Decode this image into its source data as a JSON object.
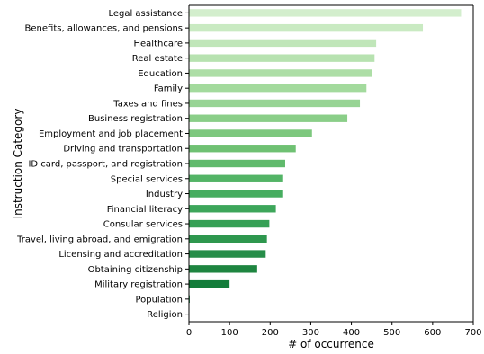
{
  "chart_data": {
    "type": "bar",
    "orientation": "horizontal",
    "xlabel": "# of occurrence",
    "ylabel": "Instruction Category",
    "xlim": [
      0,
      700
    ],
    "x_ticks": [
      0,
      100,
      200,
      300,
      400,
      500,
      600,
      700
    ],
    "grid": false,
    "categories": [
      "Legal assistance",
      "Benefits, allowances, and pensions",
      "Healthcare",
      "Real estate",
      "Education",
      "Family",
      "Taxes and fines",
      "Business registration",
      "Employment and job placement",
      "Driving and transportation",
      "ID card, passport, and registration",
      "Special services",
      "Industry",
      "Financial literacy",
      "Consular services",
      "Travel, living abroad, and emigration",
      "Licensing and accreditation",
      "Obtaining citizenship",
      "Military registration",
      "Population",
      "Religion"
    ],
    "values": [
      670,
      576,
      461,
      457,
      450,
      437,
      421,
      390,
      303,
      263,
      237,
      232,
      232,
      214,
      198,
      192,
      189,
      168,
      100,
      2,
      1
    ],
    "colors": [
      "#d3eecd",
      "#c9eac2",
      "#c0e6b9",
      "#b7e2b0",
      "#addea6",
      "#a3da9d",
      "#97d494",
      "#8ace88",
      "#7dc87e",
      "#6fc173",
      "#60ba6c",
      "#53b466",
      "#46ad5f",
      "#3da65a",
      "#36a055",
      "#2e974e",
      "#268d49",
      "#1e8540",
      "#137c3a",
      "#0c7535",
      "#006d2c"
    ]
  }
}
